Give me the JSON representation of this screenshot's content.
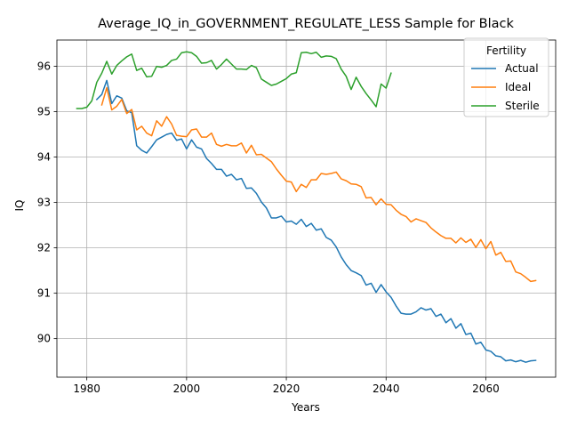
{
  "chart_data": {
    "type": "line",
    "title": "Average_IQ_in_GOVERNMENT_REGULATE_LESS Sample for Black",
    "xlabel": "Years",
    "ylabel": "IQ",
    "xlim": [
      1974,
      2074
    ],
    "ylim": [
      89.15,
      96.58
    ],
    "xticks": [
      1980,
      2000,
      2020,
      2040,
      2060
    ],
    "yticks": [
      90,
      91,
      92,
      93,
      94,
      95,
      96
    ],
    "grid": true,
    "legend": {
      "title": "Fertility",
      "position": "top-right"
    },
    "colors": {
      "Actual": "#1f77b4",
      "Ideal": "#ff7f0e",
      "Sterile": "#2ca02c"
    },
    "series": [
      {
        "name": "Actual",
        "x": [
          1982,
          1983,
          1984,
          1985,
          1986,
          1987,
          1988,
          1989,
          1990,
          1991,
          1992,
          1993,
          1994,
          1995,
          1996,
          1997,
          1998,
          1999,
          2000,
          2001,
          2002,
          2003,
          2004,
          2005,
          2006,
          2007,
          2008,
          2009,
          2010,
          2011,
          2012,
          2013,
          2014,
          2015,
          2016,
          2017,
          2018,
          2019,
          2020,
          2021,
          2022,
          2023,
          2024,
          2025,
          2026,
          2027,
          2028,
          2029,
          2030,
          2031,
          2032,
          2033,
          2034,
          2035,
          2036,
          2037,
          2038,
          2039,
          2040,
          2041,
          2042,
          2043,
          2044,
          2045,
          2046,
          2047,
          2048,
          2049,
          2050,
          2051,
          2052,
          2053,
          2054,
          2055,
          2056,
          2057,
          2058,
          2059,
          2060,
          2061,
          2062,
          2063,
          2064,
          2065,
          2066,
          2067,
          2068,
          2069,
          2070
        ],
        "values": [
          95.27,
          95.38,
          95.69,
          95.18,
          95.35,
          95.3,
          95.02,
          94.98,
          94.25,
          94.15,
          94.09,
          94.23,
          94.38,
          94.44,
          94.5,
          94.53,
          94.37,
          94.4,
          94.18,
          94.38,
          94.22,
          94.18,
          93.97,
          93.86,
          93.73,
          93.73,
          93.58,
          93.62,
          93.5,
          93.53,
          93.31,
          93.32,
          93.2,
          93.01,
          92.88,
          92.66,
          92.66,
          92.7,
          92.57,
          92.59,
          92.52,
          92.63,
          92.47,
          92.54,
          92.39,
          92.42,
          92.23,
          92.17,
          92.02,
          91.8,
          91.63,
          91.5,
          91.45,
          91.39,
          91.18,
          91.22,
          91.02,
          91.19,
          91.03,
          90.91,
          90.72,
          90.56,
          90.54,
          90.54,
          90.59,
          90.68,
          90.63,
          90.66,
          90.49,
          90.54,
          90.35,
          90.44,
          90.23,
          90.33,
          90.09,
          90.12,
          89.88,
          89.92,
          89.75,
          89.72,
          89.62,
          89.6,
          89.51,
          89.53,
          89.49,
          89.52,
          89.48,
          89.51,
          89.52
        ]
      },
      {
        "name": "Ideal",
        "x": [
          1983,
          1984,
          1985,
          1986,
          1987,
          1988,
          1989,
          1990,
          1991,
          1992,
          1993,
          1994,
          1995,
          1996,
          1997,
          1998,
          1999,
          2000,
          2001,
          2002,
          2003,
          2004,
          2005,
          2006,
          2007,
          2008,
          2009,
          2010,
          2011,
          2012,
          2013,
          2014,
          2015,
          2016,
          2017,
          2018,
          2019,
          2020,
          2021,
          2022,
          2023,
          2024,
          2025,
          2026,
          2027,
          2028,
          2029,
          2030,
          2031,
          2032,
          2033,
          2034,
          2035,
          2036,
          2037,
          2038,
          2039,
          2040,
          2041,
          2042,
          2043,
          2044,
          2045,
          2046,
          2047,
          2048,
          2049,
          2050,
          2051,
          2052,
          2053,
          2054,
          2055,
          2056,
          2057,
          2058,
          2059,
          2060,
          2061,
          2062,
          2063,
          2064,
          2065,
          2066,
          2067,
          2068,
          2069,
          2070
        ],
        "values": [
          95.15,
          95.53,
          95.04,
          95.12,
          95.27,
          94.96,
          95.05,
          94.6,
          94.68,
          94.53,
          94.47,
          94.8,
          94.68,
          94.89,
          94.73,
          94.48,
          94.46,
          94.45,
          94.6,
          94.62,
          94.44,
          94.44,
          94.53,
          94.28,
          94.24,
          94.28,
          94.25,
          94.25,
          94.31,
          94.09,
          94.26,
          94.05,
          94.06,
          93.98,
          93.9,
          93.74,
          93.6,
          93.47,
          93.45,
          93.24,
          93.4,
          93.33,
          93.5,
          93.5,
          93.64,
          93.62,
          93.64,
          93.67,
          93.52,
          93.48,
          93.41,
          93.4,
          93.35,
          93.1,
          93.11,
          92.95,
          93.08,
          92.96,
          92.95,
          92.83,
          92.74,
          92.69,
          92.57,
          92.64,
          92.6,
          92.56,
          92.44,
          92.35,
          92.27,
          92.21,
          92.21,
          92.11,
          92.22,
          92.12,
          92.19,
          92.01,
          92.18,
          91.98,
          92.14,
          91.84,
          91.9,
          91.7,
          91.71,
          91.47,
          91.43,
          91.35,
          91.26,
          91.28
        ]
      },
      {
        "name": "Sterile",
        "x": [
          1978,
          1979,
          1980,
          1981,
          1982,
          1983,
          1984,
          1985,
          1986,
          1987,
          1988,
          1989,
          1990,
          1991,
          1992,
          1993,
          1994,
          1995,
          1996,
          1997,
          1998,
          1999,
          2000,
          2001,
          2002,
          2003,
          2004,
          2005,
          2006,
          2007,
          2008,
          2009,
          2010,
          2011,
          2012,
          2013,
          2014,
          2015,
          2016,
          2017,
          2018,
          2019,
          2020,
          2021,
          2022,
          2023,
          2024,
          2025,
          2026,
          2027,
          2028,
          2029,
          2030,
          2031,
          2032,
          2033,
          2034,
          2035,
          2036,
          2037,
          2038,
          2039,
          2040,
          2041
        ],
        "values": [
          95.07,
          95.07,
          95.1,
          95.24,
          95.65,
          95.85,
          96.11,
          95.83,
          96.02,
          96.12,
          96.21,
          96.27,
          95.91,
          95.96,
          95.77,
          95.78,
          96.0,
          95.98,
          96.02,
          96.13,
          96.16,
          96.3,
          96.32,
          96.3,
          96.22,
          96.07,
          96.08,
          96.13,
          95.94,
          96.04,
          96.16,
          96.05,
          95.94,
          95.94,
          95.93,
          96.02,
          95.97,
          95.72,
          95.65,
          95.58,
          95.61,
          95.67,
          95.73,
          95.83,
          95.86,
          96.3,
          96.31,
          96.28,
          96.31,
          96.2,
          96.23,
          96.22,
          96.17,
          95.94,
          95.78,
          95.49,
          95.76,
          95.56,
          95.4,
          95.26,
          95.11,
          95.61,
          95.52,
          95.85
        ]
      }
    ]
  }
}
